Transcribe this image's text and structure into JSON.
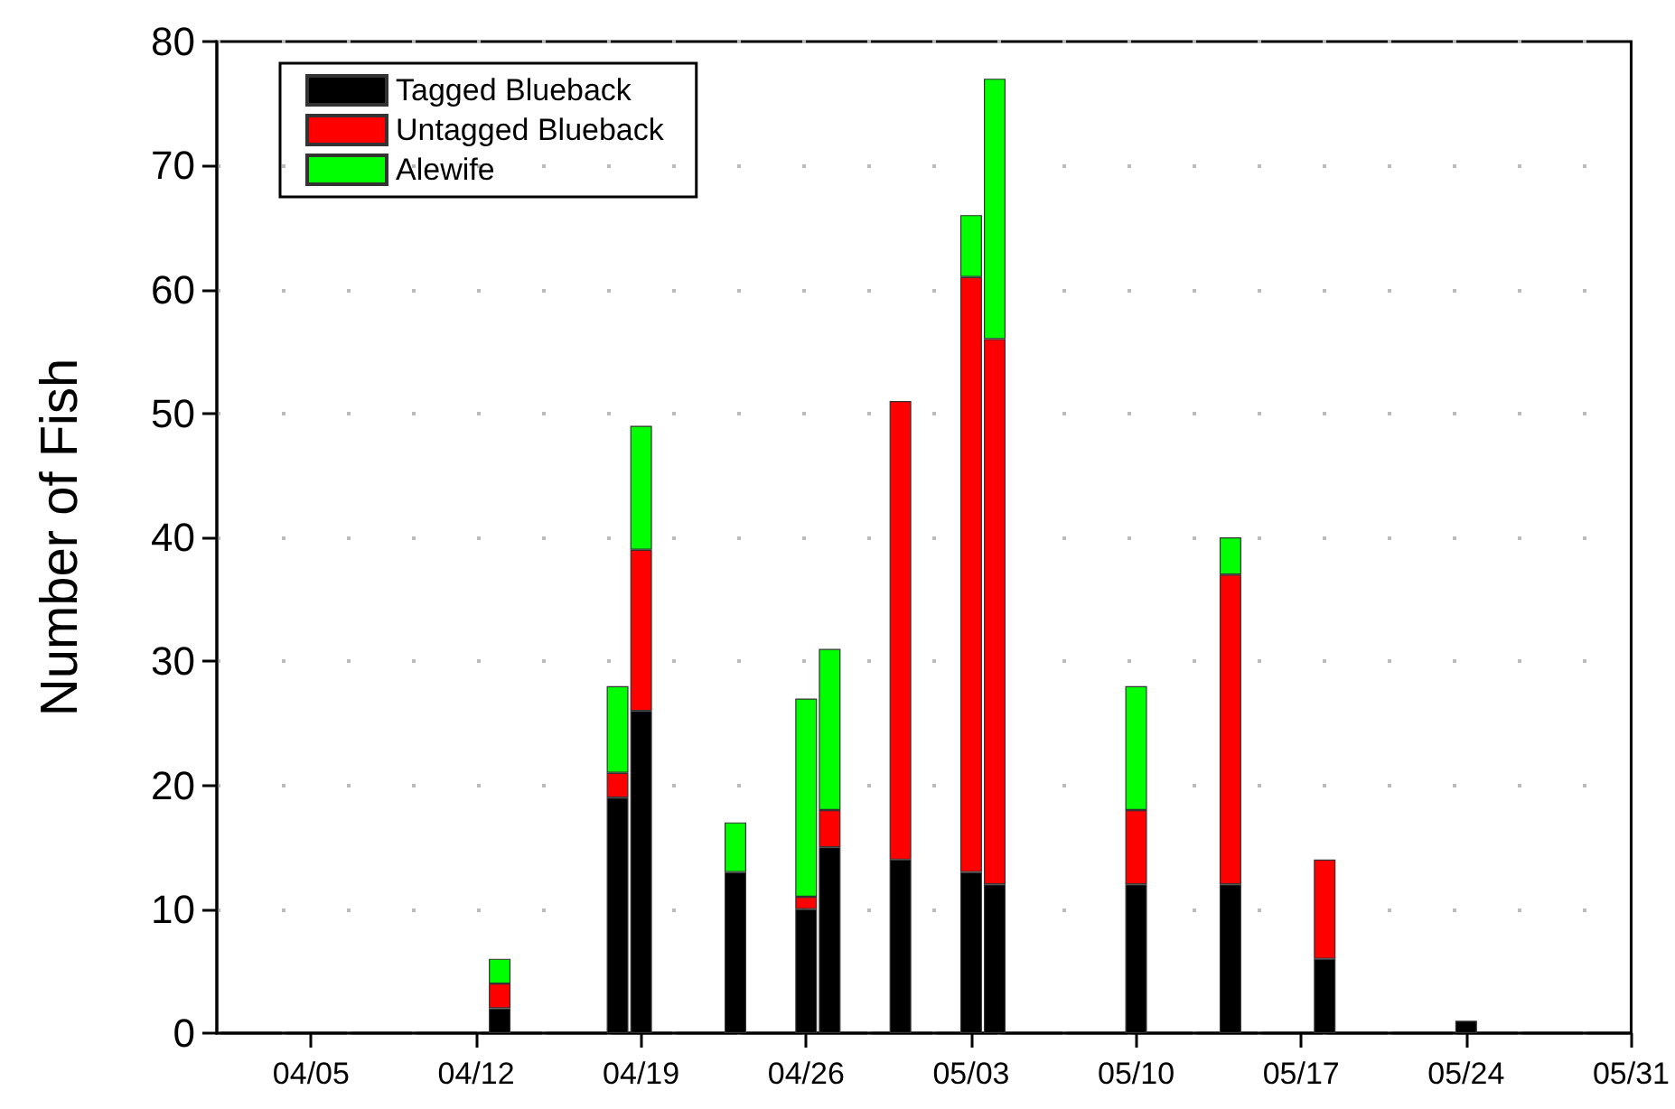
{
  "chart_data": {
    "type": "bar",
    "stacked": true,
    "ylabel": "Number of Fish",
    "x": [
      "--04-13",
      "--04-18",
      "--04-19",
      "--04-23",
      "--04-26",
      "--04-27",
      "--04-30",
      "--05-03",
      "--05-04",
      "--05-10",
      "--05-14",
      "--05-18",
      "--05-24"
    ],
    "series": [
      {
        "name": "Tagged Blueback",
        "color": "#000000",
        "values": [
          2,
          19,
          26,
          13,
          10,
          15,
          14,
          13,
          12,
          12,
          12,
          6,
          1
        ]
      },
      {
        "name": "Untagged Blueback",
        "color": "#ff0000",
        "values": [
          2,
          2,
          13,
          0,
          1,
          3,
          37,
          48,
          44,
          6,
          25,
          8,
          0
        ]
      },
      {
        "name": "Alewife",
        "color": "#00ff00",
        "values": [
          2,
          7,
          10,
          4,
          16,
          13,
          0,
          5,
          21,
          10,
          3,
          0,
          0
        ]
      }
    ],
    "xlim": [
      "--04-01",
      "--05-31"
    ],
    "xticks": [
      {
        "value": "--04-05",
        "label": "04/05"
      },
      {
        "value": "--04-12",
        "label": "04/12"
      },
      {
        "value": "--04-19",
        "label": "04/19"
      },
      {
        "value": "--04-26",
        "label": "04/26"
      },
      {
        "value": "--05-03",
        "label": "05/03"
      },
      {
        "value": "--05-10",
        "label": "05/10"
      },
      {
        "value": "--05-17",
        "label": "05/17"
      },
      {
        "value": "--05-24",
        "label": "05/24"
      },
      {
        "value": "--05-31",
        "label": "05/31"
      }
    ],
    "ylim": [
      0,
      80
    ],
    "yticks": [
      0,
      10,
      20,
      30,
      40,
      50,
      60,
      70,
      80
    ],
    "grid": "y",
    "legend": "top left"
  }
}
